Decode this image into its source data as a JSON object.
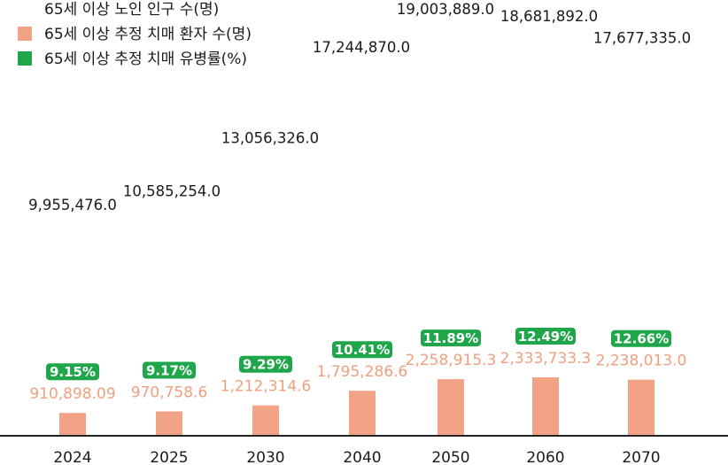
{
  "chart_data": {
    "type": "bar",
    "categories": [
      "2024",
      "2025",
      "2030",
      "2040",
      "2050",
      "2060",
      "2070"
    ],
    "series": [
      {
        "name": "65세 이상 노인 인구 수(명)",
        "labels": [
          "9,955,476.0",
          "10,585,254.0",
          "13,056,326.0",
          "17,244,870.0",
          "19,003,889.0",
          "18,681,892.0",
          "17,677,335.0"
        ],
        "values": [
          9955476.0,
          10585254.0,
          13056326.0,
          17244870.0,
          19003889.0,
          18681892.0,
          17677335.0
        ]
      },
      {
        "name": "65세 이상 추정 치매 환자 수(명)",
        "labels": [
          "910,898.09",
          "970,758.6",
          "1,212,314.6",
          "1,795,286.6",
          "2,258,915.3",
          "2,333,733.3",
          "2,238,013.0"
        ],
        "values": [
          910898.09,
          970758.6,
          1212314.6,
          1795286.6,
          2258915.3,
          2333733.3,
          2238013.0
        ],
        "color": "#f2a285"
      },
      {
        "name": "65세 이상 추정 치매 유병률(%)",
        "labels": [
          "9.15%",
          "9.17%",
          "9.29%",
          "10.41%",
          "11.89%",
          "12.49%",
          "12.66%"
        ],
        "values": [
          9.15,
          9.17,
          9.29,
          10.41,
          11.89,
          12.49,
          12.66
        ],
        "color": "#1fa64a"
      }
    ],
    "legend": "top-left",
    "grid": false
  }
}
